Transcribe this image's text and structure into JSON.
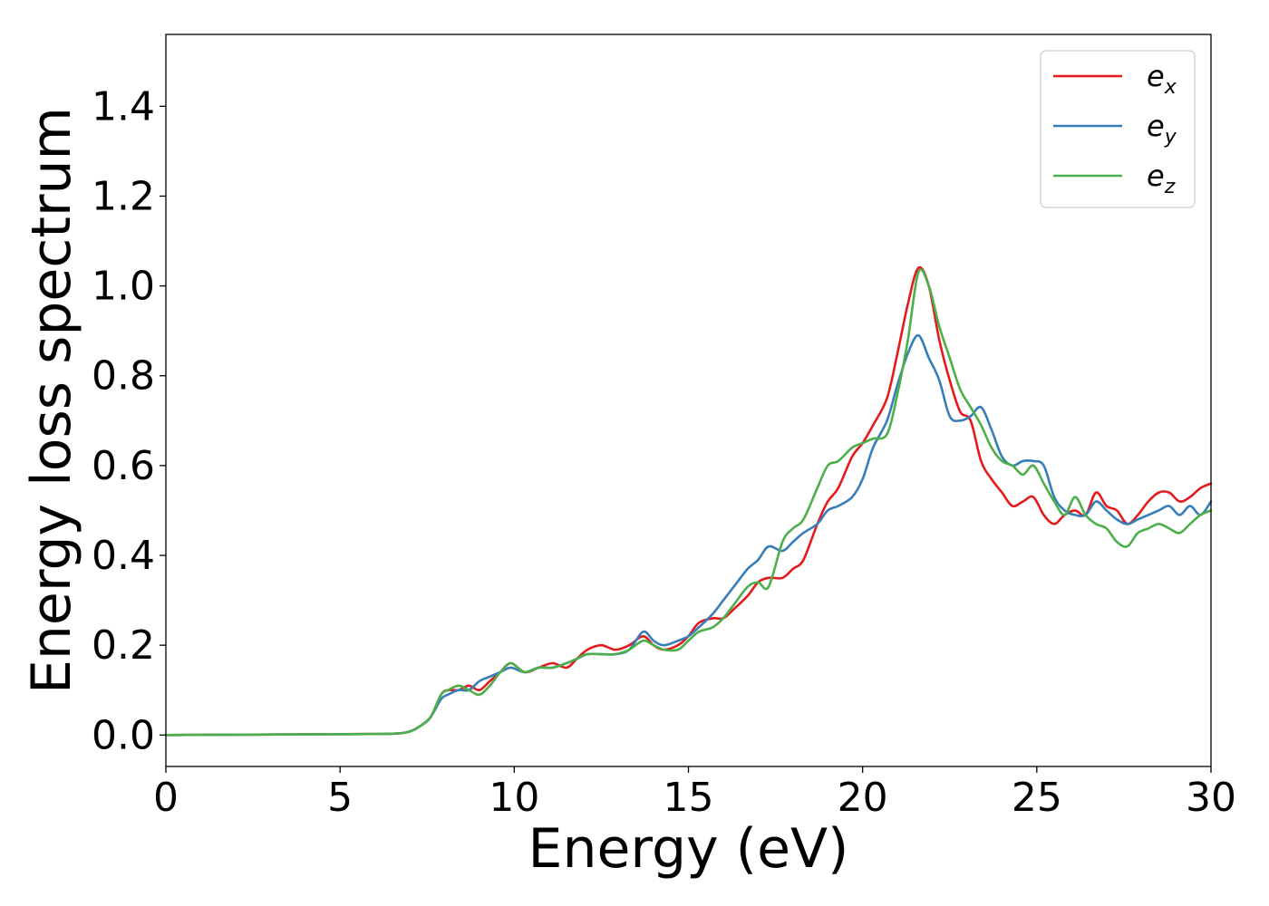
{
  "chart_data": {
    "type": "line",
    "xlabel": "Energy (eV)",
    "ylabel": "Energy loss spectrum",
    "xlim": [
      0,
      30
    ],
    "ylim": [
      -0.07,
      1.56
    ],
    "xticks": [
      0,
      5,
      10,
      15,
      20,
      25,
      30
    ],
    "xtick_labels": [
      "0",
      "5",
      "10",
      "15",
      "20",
      "25",
      "30"
    ],
    "yticks": [
      0.0,
      0.2,
      0.4,
      0.6,
      0.8,
      1.0,
      1.2,
      1.4
    ],
    "ytick_labels": [
      "0.0",
      "0.2",
      "0.4",
      "0.6",
      "0.8",
      "1.0",
      "1.2",
      "1.4"
    ],
    "grid": false,
    "legend_position": "top-right",
    "series": [
      {
        "name": "e_x",
        "legend_base": "e",
        "legend_sub": "x",
        "color": "#e41a1c",
        "x": [
          0,
          5,
          6.5,
          7.0,
          7.3,
          7.6,
          7.9,
          8.1,
          8.4,
          8.7,
          9.0,
          9.3,
          9.6,
          9.9,
          10.3,
          10.7,
          11.1,
          11.5,
          11.8,
          12.1,
          12.5,
          12.9,
          13.3,
          13.7,
          14.0,
          14.3,
          14.7,
          15.0,
          15.3,
          15.7,
          16.0,
          16.3,
          16.7,
          17.0,
          17.3,
          17.7,
          18.0,
          18.3,
          18.7,
          19.0,
          19.3,
          19.7,
          20.0,
          20.3,
          20.7,
          21.0,
          21.3,
          21.6,
          21.9,
          22.2,
          22.5,
          22.8,
          23.1,
          23.4,
          23.7,
          24.0,
          24.3,
          24.6,
          24.9,
          25.2,
          25.5,
          25.8,
          26.1,
          26.4,
          26.7,
          27.0,
          27.3,
          27.6,
          27.9,
          28.2,
          28.5,
          28.8,
          29.1,
          29.4,
          29.7,
          30.0
        ],
        "y": [
          0.0,
          0.002,
          0.003,
          0.008,
          0.02,
          0.04,
          0.09,
          0.1,
          0.1,
          0.11,
          0.1,
          0.12,
          0.14,
          0.16,
          0.14,
          0.15,
          0.16,
          0.15,
          0.17,
          0.19,
          0.2,
          0.19,
          0.2,
          0.22,
          0.2,
          0.19,
          0.2,
          0.22,
          0.25,
          0.26,
          0.26,
          0.28,
          0.31,
          0.34,
          0.35,
          0.35,
          0.37,
          0.39,
          0.47,
          0.52,
          0.55,
          0.62,
          0.65,
          0.69,
          0.75,
          0.85,
          0.96,
          1.04,
          1.0,
          0.88,
          0.79,
          0.72,
          0.7,
          0.61,
          0.57,
          0.54,
          0.51,
          0.52,
          0.53,
          0.49,
          0.47,
          0.49,
          0.5,
          0.49,
          0.54,
          0.51,
          0.5,
          0.47,
          0.49,
          0.52,
          0.54,
          0.54,
          0.52,
          0.53,
          0.55,
          0.56
        ]
      },
      {
        "name": "e_y",
        "legend_base": "e",
        "legend_sub": "y",
        "color": "#377eb8",
        "x": [
          0,
          5,
          6.5,
          7.0,
          7.3,
          7.6,
          7.9,
          8.1,
          8.4,
          8.7,
          9.0,
          9.3,
          9.6,
          9.9,
          10.3,
          10.7,
          11.1,
          11.5,
          11.8,
          12.1,
          12.5,
          12.9,
          13.3,
          13.7,
          14.0,
          14.3,
          14.7,
          15.0,
          15.3,
          15.7,
          16.0,
          16.3,
          16.7,
          17.0,
          17.3,
          17.7,
          18.0,
          18.3,
          18.7,
          19.0,
          19.3,
          19.7,
          20.0,
          20.3,
          20.7,
          21.0,
          21.3,
          21.6,
          21.9,
          22.2,
          22.5,
          22.8,
          23.1,
          23.4,
          23.7,
          24.0,
          24.3,
          24.6,
          24.9,
          25.2,
          25.5,
          25.8,
          26.1,
          26.4,
          26.7,
          27.0,
          27.3,
          27.6,
          27.9,
          28.2,
          28.5,
          28.8,
          29.1,
          29.4,
          29.7,
          30.0
        ],
        "y": [
          0.0,
          0.002,
          0.003,
          0.008,
          0.02,
          0.04,
          0.08,
          0.09,
          0.1,
          0.1,
          0.12,
          0.13,
          0.14,
          0.15,
          0.14,
          0.15,
          0.15,
          0.16,
          0.17,
          0.18,
          0.18,
          0.18,
          0.19,
          0.23,
          0.21,
          0.2,
          0.21,
          0.22,
          0.24,
          0.27,
          0.3,
          0.33,
          0.37,
          0.39,
          0.42,
          0.41,
          0.43,
          0.45,
          0.47,
          0.5,
          0.51,
          0.53,
          0.57,
          0.64,
          0.7,
          0.78,
          0.85,
          0.89,
          0.84,
          0.79,
          0.71,
          0.7,
          0.71,
          0.73,
          0.68,
          0.62,
          0.6,
          0.61,
          0.61,
          0.6,
          0.53,
          0.5,
          0.49,
          0.49,
          0.52,
          0.5,
          0.48,
          0.47,
          0.48,
          0.49,
          0.5,
          0.51,
          0.49,
          0.51,
          0.49,
          0.52
        ]
      },
      {
        "name": "e_z",
        "legend_base": "e",
        "legend_sub": "z",
        "color": "#4daf4a",
        "x": [
          0,
          5,
          6.5,
          7.0,
          7.3,
          7.6,
          7.9,
          8.1,
          8.4,
          8.7,
          9.0,
          9.3,
          9.6,
          9.9,
          10.3,
          10.7,
          11.1,
          11.5,
          11.8,
          12.1,
          12.5,
          12.9,
          13.3,
          13.7,
          14.0,
          14.3,
          14.7,
          15.0,
          15.3,
          15.7,
          16.0,
          16.3,
          16.7,
          17.0,
          17.3,
          17.7,
          18.0,
          18.3,
          18.7,
          19.0,
          19.3,
          19.7,
          20.0,
          20.3,
          20.7,
          21.0,
          21.3,
          21.6,
          21.9,
          22.2,
          22.5,
          22.8,
          23.1,
          23.4,
          23.7,
          24.0,
          24.3,
          24.6,
          24.9,
          25.2,
          25.5,
          25.8,
          26.1,
          26.4,
          26.7,
          27.0,
          27.3,
          27.6,
          27.9,
          28.2,
          28.5,
          28.8,
          29.1,
          29.4,
          29.7,
          30.0
        ],
        "y": [
          0.0,
          0.002,
          0.003,
          0.008,
          0.02,
          0.04,
          0.09,
          0.1,
          0.11,
          0.1,
          0.09,
          0.11,
          0.14,
          0.16,
          0.14,
          0.15,
          0.15,
          0.16,
          0.17,
          0.18,
          0.18,
          0.18,
          0.19,
          0.21,
          0.2,
          0.19,
          0.19,
          0.21,
          0.23,
          0.24,
          0.26,
          0.29,
          0.33,
          0.34,
          0.33,
          0.43,
          0.46,
          0.48,
          0.55,
          0.6,
          0.61,
          0.64,
          0.65,
          0.66,
          0.67,
          0.76,
          0.88,
          1.03,
          1.0,
          0.91,
          0.84,
          0.77,
          0.73,
          0.69,
          0.64,
          0.61,
          0.6,
          0.58,
          0.6,
          0.56,
          0.52,
          0.49,
          0.53,
          0.49,
          0.47,
          0.46,
          0.43,
          0.42,
          0.45,
          0.46,
          0.47,
          0.46,
          0.45,
          0.47,
          0.49,
          0.5
        ]
      }
    ]
  }
}
